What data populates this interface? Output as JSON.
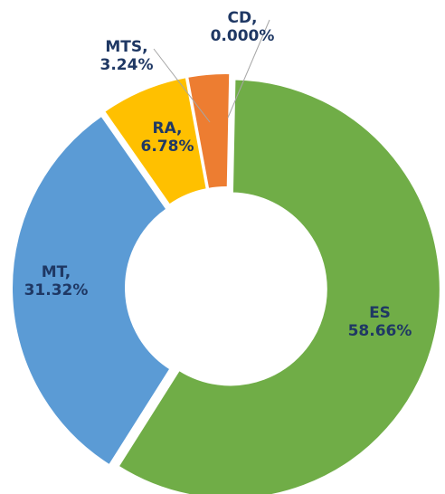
{
  "chart_data": {
    "type": "donut",
    "categories": [
      "ES",
      "MT,",
      "RA,",
      "MTS,",
      "CD,"
    ],
    "values": [
      58.66,
      31.32,
      6.78,
      3.24,
      0
    ],
    "value_labels": [
      "58.66%",
      "31.32%",
      "6.78%",
      "3.24%",
      "0.000%"
    ],
    "colors": [
      "#70ad47",
      "#5b9bd5",
      "#ffc000",
      "#ed7d31",
      "#a5a5a5"
    ]
  }
}
